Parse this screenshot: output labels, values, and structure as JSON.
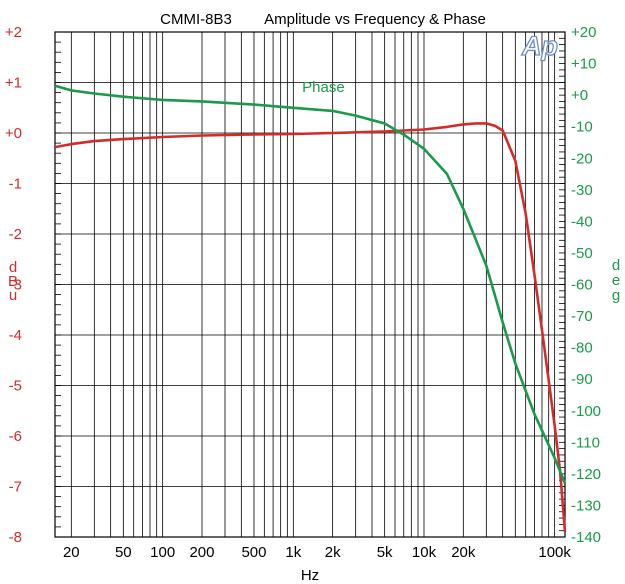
{
  "chart_data": {
    "type": "line",
    "title_left": "CMMI-8B3",
    "title_right": "Amplitude vs Frequency & Phase",
    "logo_text": "Ap",
    "xlabel": "Hz",
    "ylabel_left": [
      "d",
      "B",
      "u"
    ],
    "ylabel_right": [
      "d",
      "e",
      "g"
    ],
    "x_scale": "log",
    "xlim": [
      15,
      120000
    ],
    "ylim_left": [
      -8,
      2
    ],
    "ylim_right": [
      -140,
      20
    ],
    "grid": true,
    "x_ticks": [
      {
        "value": 20,
        "label": "20"
      },
      {
        "value": 50,
        "label": "50"
      },
      {
        "value": 100,
        "label": "100"
      },
      {
        "value": 200,
        "label": "200"
      },
      {
        "value": 500,
        "label": "500"
      },
      {
        "value": 1000,
        "label": "1k"
      },
      {
        "value": 2000,
        "label": "2k"
      },
      {
        "value": 5000,
        "label": "5k"
      },
      {
        "value": 10000,
        "label": "10k"
      },
      {
        "value": 20000,
        "label": "20k"
      },
      {
        "value": 100000,
        "label": "100k"
      }
    ],
    "y_left_ticks": [
      {
        "value": 2,
        "label": "+2"
      },
      {
        "value": 1,
        "label": "+1"
      },
      {
        "value": 0,
        "label": "+0"
      },
      {
        "value": -1,
        "label": "-1"
      },
      {
        "value": -2,
        "label": "-2"
      },
      {
        "value": -3,
        "label": "-3"
      },
      {
        "value": -4,
        "label": "-4"
      },
      {
        "value": -5,
        "label": "-5"
      },
      {
        "value": -6,
        "label": "-6"
      },
      {
        "value": -7,
        "label": "-7"
      },
      {
        "value": -8,
        "label": "-8"
      }
    ],
    "y_right_ticks": [
      {
        "value": 20,
        "label": "+20"
      },
      {
        "value": 10,
        "label": "+10"
      },
      {
        "value": 0,
        "label": "+0"
      },
      {
        "value": -10,
        "label": "-10"
      },
      {
        "value": -20,
        "label": "-20"
      },
      {
        "value": -30,
        "label": "-30"
      },
      {
        "value": -40,
        "label": "-40"
      },
      {
        "value": -50,
        "label": "-50"
      },
      {
        "value": -60,
        "label": "-60"
      },
      {
        "value": -70,
        "label": "-70"
      },
      {
        "value": -80,
        "label": "-80"
      },
      {
        "value": -90,
        "label": "-90"
      },
      {
        "value": -100,
        "label": "-100"
      },
      {
        "value": -110,
        "label": "-110"
      },
      {
        "value": -120,
        "label": "-120"
      },
      {
        "value": -130,
        "label": "-130"
      },
      {
        "value": -140,
        "label": "-140"
      }
    ],
    "series": [
      {
        "name": "",
        "axis": "left",
        "color": "#d42a2a",
        "x": [
          15,
          20,
          30,
          50,
          100,
          200,
          500,
          1000,
          2000,
          5000,
          10000,
          15000,
          20000,
          25000,
          30000,
          35000,
          40000,
          50000,
          60000,
          70000,
          80000,
          90000,
          100000,
          110000,
          120000
        ],
        "y": [
          -0.28,
          -0.22,
          -0.16,
          -0.12,
          -0.08,
          -0.05,
          -0.03,
          -0.02,
          0.0,
          0.03,
          0.07,
          0.12,
          0.17,
          0.19,
          0.19,
          0.14,
          0.05,
          -0.55,
          -1.6,
          -2.8,
          -3.9,
          -4.9,
          -5.8,
          -6.7,
          -7.9
        ]
      },
      {
        "name": "Phase",
        "axis": "right",
        "color": "#1a9a4a",
        "label_at": {
          "x": 1700,
          "y": 0
        },
        "x": [
          15,
          20,
          30,
          50,
          100,
          200,
          500,
          1000,
          2000,
          3000,
          5000,
          7000,
          10000,
          15000,
          20000,
          30000,
          40000,
          50000,
          70000,
          100000,
          120000
        ],
        "y": [
          3,
          1.5,
          0.5,
          -0.5,
          -1.5,
          -2,
          -3,
          -4,
          -5,
          -6.5,
          -9,
          -12.5,
          -17,
          -25,
          -36,
          -54,
          -72,
          -85,
          -101,
          -115,
          -123
        ]
      }
    ]
  }
}
